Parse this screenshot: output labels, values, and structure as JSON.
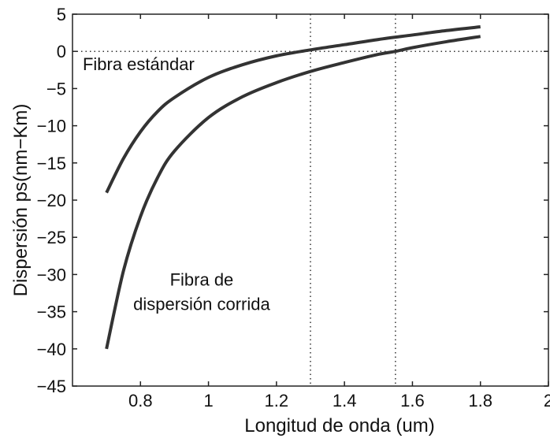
{
  "chart_data": {
    "type": "line",
    "title": "",
    "xlabel": "Longitud de onda (um)",
    "ylabel": "Dispersión ps(nm−Km)",
    "xlim": [
      0.6,
      2.0
    ],
    "ylim": [
      -45,
      5
    ],
    "x_ticks": [
      0.8,
      1.0,
      1.2,
      1.4,
      1.6,
      1.8,
      2.0
    ],
    "x_tick_labels": [
      "0.8",
      "1",
      "1.2",
      "1.4",
      "1.6",
      "1.8",
      "2"
    ],
    "y_ticks": [
      5,
      0,
      -5,
      -10,
      -15,
      -20,
      -25,
      -30,
      -35,
      -40,
      -45
    ],
    "y_tick_labels": [
      "5",
      "0",
      "−5",
      "−10",
      "−15",
      "−20",
      "−25",
      "−30",
      "−35",
      "−40",
      "−45"
    ],
    "grid": false,
    "series": [
      {
        "x": [
          0.7,
          0.75,
          0.8,
          0.85,
          0.9,
          1.0,
          1.1,
          1.2,
          1.3,
          1.4,
          1.5,
          1.6,
          1.7,
          1.8
        ],
        "values": [
          -19.0,
          -14.4,
          -10.8,
          -8.1,
          -6.2,
          -3.5,
          -1.8,
          -0.6,
          0.2,
          0.9,
          1.6,
          2.2,
          2.8,
          3.3
        ],
        "color": "#333333"
      },
      {
        "x": [
          0.7,
          0.75,
          0.8,
          0.85,
          0.9,
          1.0,
          1.1,
          1.2,
          1.3,
          1.4,
          1.5,
          1.55,
          1.6,
          1.7,
          1.8
        ],
        "values": [
          -40.0,
          -29.5,
          -22.2,
          -17.0,
          -13.4,
          -8.9,
          -6.1,
          -4.2,
          -2.7,
          -1.5,
          -0.4,
          0.0,
          0.5,
          1.3,
          2.0
        ],
        "color": "#333333"
      }
    ],
    "reference_lines": [
      {
        "axis": "y",
        "value": 0
      },
      {
        "axis": "x",
        "value": 1.3
      },
      {
        "axis": "x",
        "value": 1.55
      }
    ],
    "annotations": [
      {
        "lines": [
          "Fibra estándar"
        ],
        "x": 0.63,
        "y": -2.5
      },
      {
        "lines": [
          "Fibra de",
          "dispersión corrida"
        ],
        "x": 0.98,
        "y": -31.5
      }
    ]
  }
}
